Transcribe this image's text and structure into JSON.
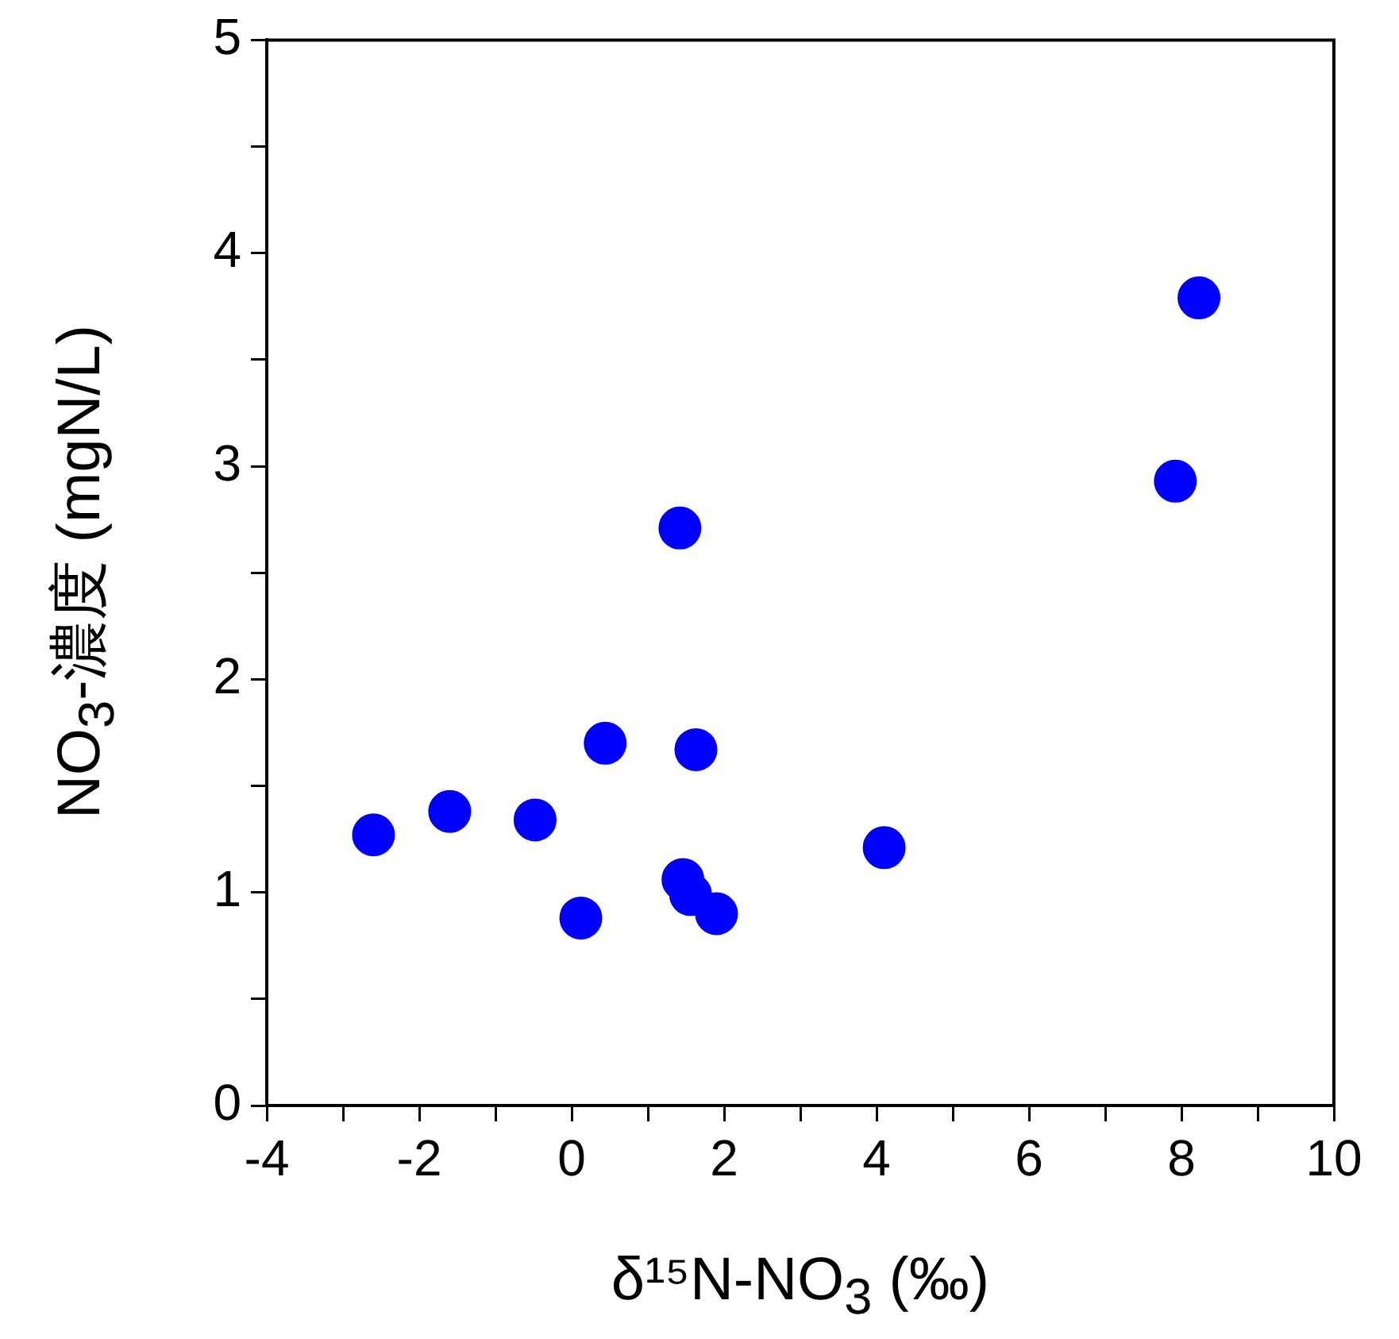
{
  "chart_data": {
    "type": "scatter",
    "xlabel": "δ¹⁵N-NO$_{3}$ (‰)",
    "ylabel": "NO$_{3}$-濃度 (mgN/L)",
    "x": [
      -2.6,
      -1.6,
      -0.48,
      0.12,
      0.44,
      1.42,
      1.46,
      1.56,
      1.63,
      1.9,
      4.1,
      7.92,
      8.23
    ],
    "series": [
      {
        "color": "#0000ff",
        "values": [
          1.27,
          1.38,
          1.34,
          0.88,
          1.7,
          2.71,
          1.06,
          0.99,
          1.67,
          0.9,
          1.21,
          2.93,
          3.79
        ]
      }
    ],
    "xlim": [
      -4,
      10
    ],
    "ylim": [
      0,
      5
    ],
    "xticks": [
      -4,
      {
        "value": -3,
        "label": null
      },
      -2,
      {
        "value": -1,
        "label": null
      },
      0,
      {
        "value": 1,
        "label": null
      },
      2,
      {
        "value": 3,
        "label": null
      },
      4,
      {
        "value": 5,
        "label": null
      },
      6,
      {
        "value": 7,
        "label": null
      },
      8,
      {
        "value": 9,
        "label": null
      },
      10
    ],
    "yticks": [
      0,
      {
        "value": 0.5,
        "label": null
      },
      1,
      {
        "value": 1.5,
        "label": null
      },
      2,
      {
        "value": 2.5,
        "label": null
      },
      3,
      {
        "value": 3.5,
        "label": null
      },
      4,
      {
        "value": 4.5,
        "label": null
      },
      5
    ],
    "marker": "circle",
    "grid": false,
    "legend": false
  }
}
